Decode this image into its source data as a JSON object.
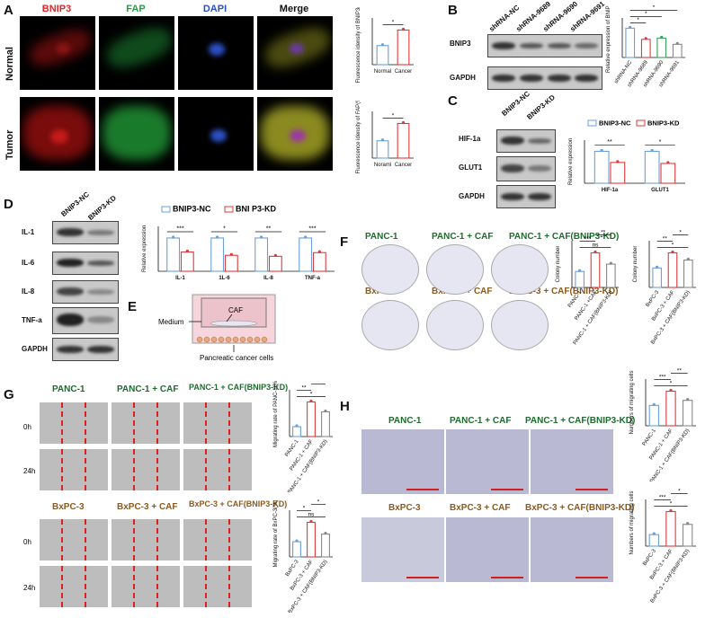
{
  "panels": {
    "A": "A",
    "B": "B",
    "C": "C",
    "D": "D",
    "E": "E",
    "F": "F",
    "G": "G",
    "H": "H"
  },
  "panelA": {
    "channels": [
      "BNIP3",
      "FAP",
      "DAPI",
      "Merge"
    ],
    "channel_colors": [
      "#e0262c",
      "#25a240",
      "#2c4fc4",
      "#111111"
    ],
    "rows": [
      "Normal",
      "Tumor"
    ]
  },
  "panelB": {
    "lanes": [
      "shRNA-NC",
      "shRNA-9689",
      "shRNA-9690",
      "shRNA-9691"
    ],
    "blots": [
      "BNIP3",
      "GAPDH"
    ]
  },
  "panelC": {
    "lanes": [
      "BNIP3-NC",
      "BNIP3-KD"
    ],
    "blots": [
      "HIF-1a",
      "GLUT1",
      "GAPDH"
    ]
  },
  "panelD": {
    "lanes": [
      "BNIP3-NC",
      "BNIP3-KD"
    ],
    "blots": [
      "IL-1",
      "IL-6",
      "IL-8",
      "TNF-a",
      "GAPDH"
    ]
  },
  "panelE": {
    "medium": "Medium",
    "caf": "CAF",
    "cells": "Pancreatic cancer cells"
  },
  "panelF": {
    "row1": [
      "PANC-1",
      "PANC-1 + CAF",
      "PANC-1 + CAF(BNIP3-KD)"
    ],
    "row2": [
      "BxPC-3",
      "BxPC-3 + CAF",
      "BxPC-3 + CAF(BNIP3-KD)"
    ]
  },
  "panelG": {
    "row1": [
      "PANC-1",
      "PANC-1 + CAF",
      "PANC-1 + CAF(BNIP3-KD)"
    ],
    "row2": [
      "BxPC-3",
      "BxPC-3 + CAF",
      "BxPC-3 + CAF(BNIP3-KD)"
    ],
    "times": [
      "0h",
      "24h",
      "0h",
      "24h"
    ]
  },
  "panelH": {
    "row1": [
      "PANC-1",
      "PANC-1 + CAF",
      "PANC-1 + CAF(BNIP3-KD)"
    ],
    "row2": [
      "BxPC-3",
      "BxPC-3 + CAF",
      "BxPC-3 + CAF(BNIP3-KD)"
    ]
  },
  "chart_data": [
    {
      "id": "A1",
      "type": "bar",
      "categories": [
        "Normal",
        "Cancer"
      ],
      "values": [
        16,
        29
      ],
      "ylabel": "Fluorescence idensity of BNIP3(%)",
      "sig": [
        "*"
      ],
      "colors": [
        "#6aa0d8",
        "#e03a3a"
      ]
    },
    {
      "id": "A2",
      "type": "bar",
      "categories": [
        "Noraml",
        "Cancer"
      ],
      "values": [
        14,
        28
      ],
      "ylabel": "Fluorescence idensity of FAP(%)",
      "sig": [
        "*"
      ],
      "colors": [
        "#6aa0d8",
        "#e03a3a"
      ]
    },
    {
      "id": "B",
      "type": "bar",
      "categories": [
        "shRNA-NC",
        "shRNA-9689",
        "shRNA-9690",
        "shRNA-9691"
      ],
      "values": [
        1.0,
        0.62,
        0.66,
        0.45
      ],
      "ylabel": "Relative expression of BNIP3",
      "sig": [
        "*",
        "*",
        "*",
        "**"
      ],
      "colors": [
        "#6aa0d8",
        "#e03a3a",
        "#3aa05a",
        "#888888"
      ]
    },
    {
      "id": "C",
      "type": "bar",
      "categories": [
        "HIF-1a",
        "GLUT1"
      ],
      "series": [
        {
          "name": "BNIP3-NC",
          "values": [
            1.0,
            1.0
          ]
        },
        {
          "name": "BNIP3-KD",
          "values": [
            0.65,
            0.62
          ]
        }
      ],
      "ylabel": "Relative expression",
      "sig": [
        "**",
        "*"
      ],
      "colors": [
        "#6aa0d8",
        "#e03a3a"
      ]
    },
    {
      "id": "D",
      "type": "bar",
      "categories": [
        "IL-1",
        "1L-6",
        "IL-8",
        "TNF-a"
      ],
      "series": [
        {
          "name": "BNIP3-NC",
          "values": [
            1.0,
            1.0,
            1.0,
            1.0
          ]
        },
        {
          "name": "BNI P3-KD",
          "values": [
            0.58,
            0.48,
            0.45,
            0.56
          ]
        }
      ],
      "ylabel": "Relative expression",
      "sig": [
        "***",
        "*",
        "**",
        "***"
      ],
      "colors": [
        "#6aa0d8",
        "#e03a3a"
      ]
    },
    {
      "id": "F1",
      "type": "bar",
      "categories": [
        "PANC-1",
        "PANC-1 +CAF",
        "PANC-1 + CAF(BNIP3-KD)"
      ],
      "values": [
        120,
        260,
        175
      ],
      "ylabel": "Colony number",
      "sig": [
        "ns",
        "***",
        "**"
      ],
      "colors": [
        "#6aa0d8",
        "#e03a3a",
        "#888888"
      ]
    },
    {
      "id": "F2",
      "type": "bar",
      "categories": [
        "BxPC-3",
        "BxPC-3 + CAF",
        "BxPC-3 + CAF(BNIP3-KD)"
      ],
      "values": [
        135,
        240,
        190
      ],
      "ylabel": "Colony number",
      "sig": [
        "*",
        "**",
        "*"
      ],
      "colors": [
        "#6aa0d8",
        "#e03a3a",
        "#888888"
      ]
    },
    {
      "id": "G1",
      "type": "bar",
      "categories": [
        "PANC-1",
        "PANC-1 + CAF",
        "PANC-1 + CAF(BNIP3-KD)"
      ],
      "values": [
        12,
        42,
        30
      ],
      "ylabel": "Migrating rate of PANC-1(%)",
      "sig": [
        "*",
        "**",
        "*"
      ],
      "colors": [
        "#6aa0d8",
        "#e03a3a",
        "#888888"
      ]
    },
    {
      "id": "G2",
      "type": "bar",
      "categories": [
        "BxPC-3",
        "BxPC-3 + CAF",
        "BxPC-3 + CAF(BNIP3-KD)"
      ],
      "values": [
        22,
        50,
        33
      ],
      "ylabel": "Migrating rate of BxPC-3(%)",
      "sig": [
        "ns",
        "*",
        "*"
      ],
      "colors": [
        "#6aa0d8",
        "#e03a3a",
        "#888888"
      ]
    },
    {
      "id": "H1",
      "type": "bar",
      "categories": [
        "PANC-1",
        "PANC-1 + CAF",
        "PANC-1 + CAF(BNIP3-KD)"
      ],
      "values": [
        200,
        340,
        250
      ],
      "ylabel": "Numbers of migrating cells",
      "sig": [
        "*",
        "***",
        "**"
      ],
      "colors": [
        "#6aa0d8",
        "#e03a3a",
        "#888888"
      ]
    },
    {
      "id": "H2",
      "type": "bar",
      "categories": [
        "BxPC-3",
        "BxPC-3 + CAF",
        "BxPC-3 + CAF(BNIP3-KD)"
      ],
      "values": [
        90,
        270,
        170
      ],
      "ylabel": "Numbers of migrating cells",
      "sig": [
        "*",
        "***",
        "*"
      ],
      "colors": [
        "#6aa0d8",
        "#e03a3a",
        "#888888"
      ]
    }
  ]
}
